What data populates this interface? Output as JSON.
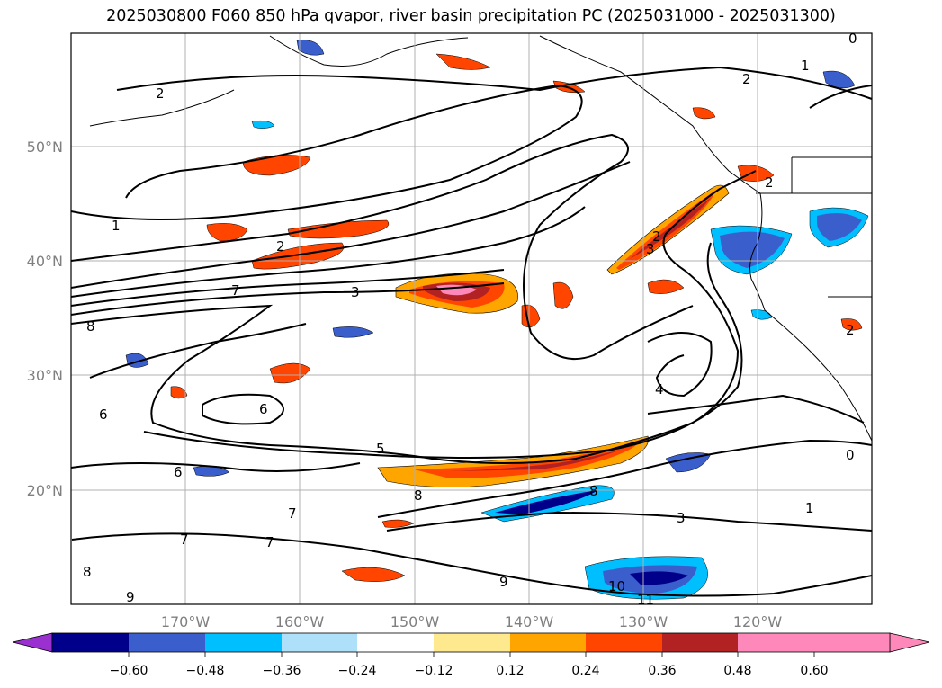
{
  "title": "2025030800 F060 850 hPa qvapor, river basin precipitation PC (2025031000 - 2025031300)",
  "lat_labels": [
    "50°N",
    "40°N",
    "30°N",
    "20°N"
  ],
  "lon_labels": [
    "170°W",
    "160°W",
    "150°W",
    "140°W",
    "130°W",
    "120°W"
  ],
  "colorbar": {
    "tick_labels": [
      "−0.60",
      "−0.48",
      "−0.36",
      "−0.24",
      "−0.12",
      "0.12",
      "0.24",
      "0.36",
      "0.48",
      "0.60"
    ],
    "colors": [
      "#9b30d0",
      "#00008b",
      "#3a5fcd",
      "#00bfff",
      "#afe0fa",
      "#ffffff",
      "#ffe98f",
      "#ffa500",
      "#ff4500",
      "#b22222",
      "#ff88bb"
    ]
  },
  "contour_labels": [
    "0",
    "1",
    "2",
    "2",
    "1",
    "2",
    "7",
    "3",
    "8",
    "6",
    "5",
    "6",
    "8",
    "7",
    "6",
    "8",
    "7",
    "7",
    "9",
    "9",
    "2",
    "3",
    "4",
    "8",
    "3",
    "1",
    "0",
    "10",
    "11",
    "2",
    "2"
  ]
}
